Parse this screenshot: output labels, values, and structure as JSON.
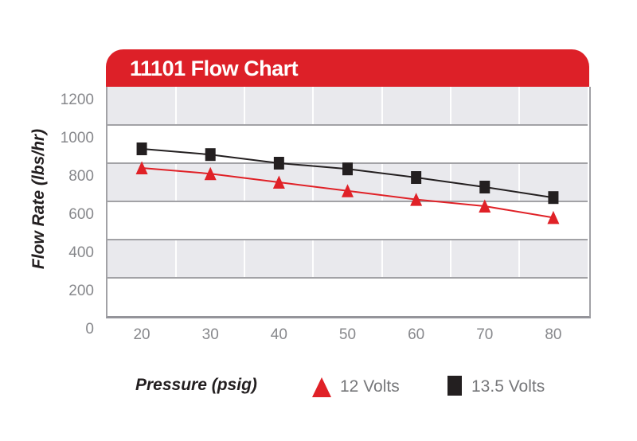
{
  "header": {
    "title": "11101 Flow Chart"
  },
  "chart_data": {
    "type": "line",
    "title": "11101 Flow Chart",
    "xlabel": "Pressure (psig)",
    "ylabel": "Flow Rate (lbs/hr)",
    "x": [
      20,
      30,
      40,
      50,
      60,
      70,
      80
    ],
    "x_tick_labels": [
      "20",
      "30",
      "40",
      "50",
      "60",
      "70",
      "80"
    ],
    "y_tick_labels": [
      "1200",
      "1000",
      "800",
      "600",
      "400",
      "200",
      "0"
    ],
    "ylim": [
      0,
      1200
    ],
    "y_tick_step": 200,
    "grid": "alternating gray/white horizontal bands, white vertical category separators",
    "legend_position": "bottom",
    "series": [
      {
        "name": "12 Volts",
        "marker": "triangle",
        "color": "#e02127",
        "values": [
          775,
          745,
          700,
          655,
          610,
          575,
          515
        ]
      },
      {
        "name": "13.5 Volts",
        "marker": "square",
        "color": "#231f20",
        "values": [
          875,
          845,
          800,
          770,
          725,
          675,
          620
        ]
      }
    ]
  },
  "colors": {
    "header_red": "#dd2028",
    "band_gray": "#e9e9ed",
    "gridline": "#a2a2a6",
    "tick_text": "#87888c",
    "axis_title_text": "#231f20",
    "legend_text": "#76777a",
    "title_text": "#ffffff"
  }
}
